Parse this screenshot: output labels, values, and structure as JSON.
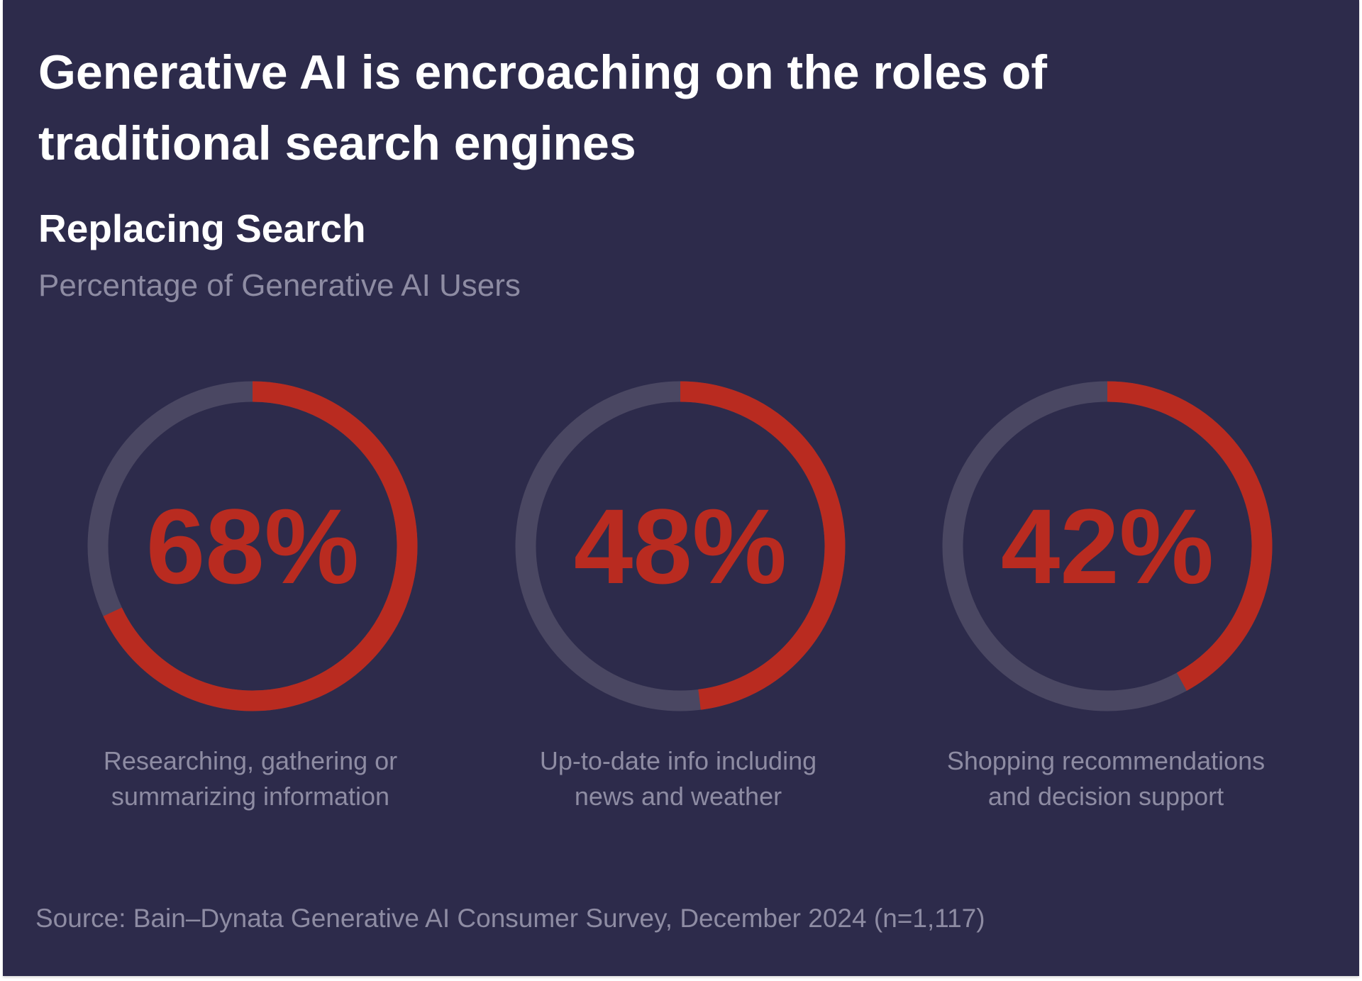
{
  "title": "Generative AI is encroaching on the roles of traditional search engines",
  "chart_data": {
    "type": "donut",
    "title": "Replacing Search",
    "subtitle": "Percentage of Generative AI Users",
    "categories": [
      "Researching, gathering or summarizing information",
      "Up-to-date info including news and weather",
      "Shopping recommendations and decision support"
    ],
    "values": [
      68,
      48,
      42
    ],
    "value_labels": [
      "68%",
      "48%",
      "42%"
    ],
    "range": [
      0,
      100
    ],
    "colors": {
      "fill": "#b92b20",
      "track": "#4a4762",
      "background": "#2d2b4b"
    }
  },
  "labels": [
    [
      "Researching, gathering or",
      "summarizing information"
    ],
    [
      "Up-to-date info including",
      "news and weather"
    ],
    [
      "Shopping recommendations",
      "and decision support"
    ]
  ],
  "source": "Source: Bain–Dynata Generative AI Consumer Survey, December 2024 (n=1,117)"
}
